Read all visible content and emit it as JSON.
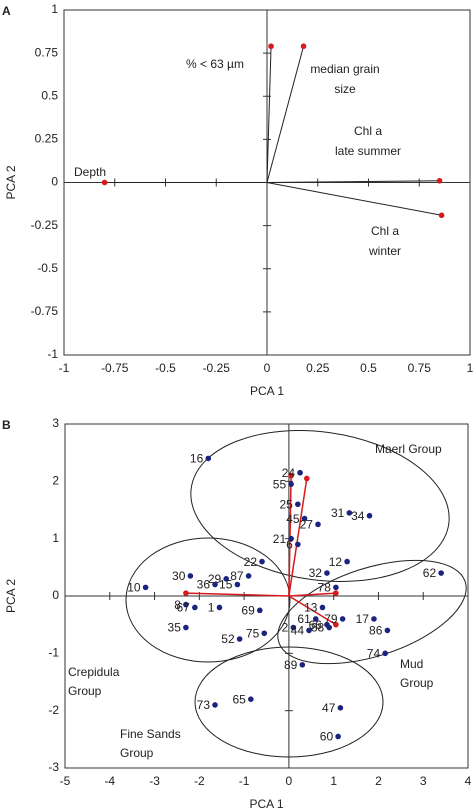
{
  "chart_data": [
    {
      "type": "loadings",
      "panel_label": "A",
      "xlabel": "PCA 1",
      "ylabel": "PCA 2",
      "xlim": [
        -1,
        1
      ],
      "ylim": [
        -1,
        1
      ],
      "xticks": [
        -1,
        -0.75,
        -0.5,
        -0.25,
        0,
        0.25,
        0.5,
        0.75,
        1
      ],
      "yticks": [
        -1,
        -0.75,
        -0.5,
        -0.25,
        0,
        0.25,
        0.5,
        0.75,
        1
      ],
      "color": "#d7191c",
      "vectors": {
        "labels": [
          [
            "% < 63 µm"
          ],
          [
            "median grain",
            "size"
          ],
          [
            "Chl a",
            "late summer"
          ],
          [
            "Chl a",
            "winter"
          ],
          [
            "Depth"
          ]
        ],
        "x": [
          0.02,
          0.18,
          0.85,
          0.86,
          -0.8
        ],
        "y": [
          0.79,
          0.79,
          0.01,
          -0.19,
          0
        ]
      }
    },
    {
      "type": "scatter",
      "panel_label": "B",
      "xlabel": "PCA 1",
      "ylabel": "PCA 2",
      "xlim": [
        -5,
        4
      ],
      "ylim": [
        -3,
        3
      ],
      "xticks": [
        -5,
        -4,
        -3,
        -2,
        -1,
        0,
        1,
        2,
        3,
        4
      ],
      "yticks": [
        -3,
        -2,
        -1,
        0,
        1,
        2,
        3
      ],
      "color": "#1a237e",
      "vector_color": "#d7191c",
      "labels": [
        "16",
        "55",
        "24",
        "25",
        "45",
        "31",
        "27",
        "34",
        "21",
        "22",
        "6",
        "12",
        "32",
        "87",
        "29",
        "30",
        "10",
        "36",
        "15",
        "78",
        "62",
        "8",
        "67",
        "1",
        "69",
        "35",
        "52",
        "75",
        "13",
        "79",
        "61",
        "2",
        "66",
        "88",
        "44",
        "17",
        "86",
        "74",
        "89",
        "73",
        "65",
        "47",
        "60"
      ],
      "x": [
        -1.8,
        0.05,
        0.25,
        0.2,
        0.35,
        1.35,
        0.65,
        1.8,
        0.05,
        -0.6,
        0.2,
        1.3,
        0.85,
        -0.9,
        -1.4,
        -2.2,
        -3.2,
        -1.65,
        -1.15,
        1.05,
        3.4,
        -2.3,
        -2.1,
        -1.55,
        -0.65,
        -2.3,
        -1.1,
        -0.55,
        0.75,
        1.2,
        0.6,
        0.1,
        0.85,
        0.9,
        0.45,
        1.9,
        2.2,
        2.15,
        0.3,
        -1.65,
        -0.85,
        1.15,
        1.1
      ],
      "y": [
        2.4,
        1.95,
        2.15,
        1.6,
        1.35,
        1.45,
        1.25,
        1.4,
        1.0,
        0.6,
        0.9,
        0.6,
        0.4,
        0.35,
        0.3,
        0.35,
        0.15,
        0.2,
        0.2,
        0.15,
        0.4,
        -0.15,
        -0.2,
        -0.2,
        -0.25,
        -0.55,
        -0.75,
        -0.65,
        -0.2,
        -0.4,
        -0.4,
        -0.55,
        -0.5,
        -0.55,
        -0.6,
        -0.4,
        -0.6,
        -1.0,
        -1.2,
        -1.9,
        -1.8,
        -1.95,
        -2.45
      ],
      "vectors": {
        "x": [
          0.05,
          0.4,
          1.05,
          1.05,
          -2.3
        ],
        "y": [
          2.1,
          2.05,
          0.05,
          -0.5,
          0.05
        ]
      },
      "groups": [
        [
          "Maerl Group"
        ],
        [
          "Crepidula",
          "Group"
        ],
        [
          "Mud",
          "Group"
        ],
        [
          "Fine Sands",
          "Group"
        ]
      ]
    }
  ]
}
